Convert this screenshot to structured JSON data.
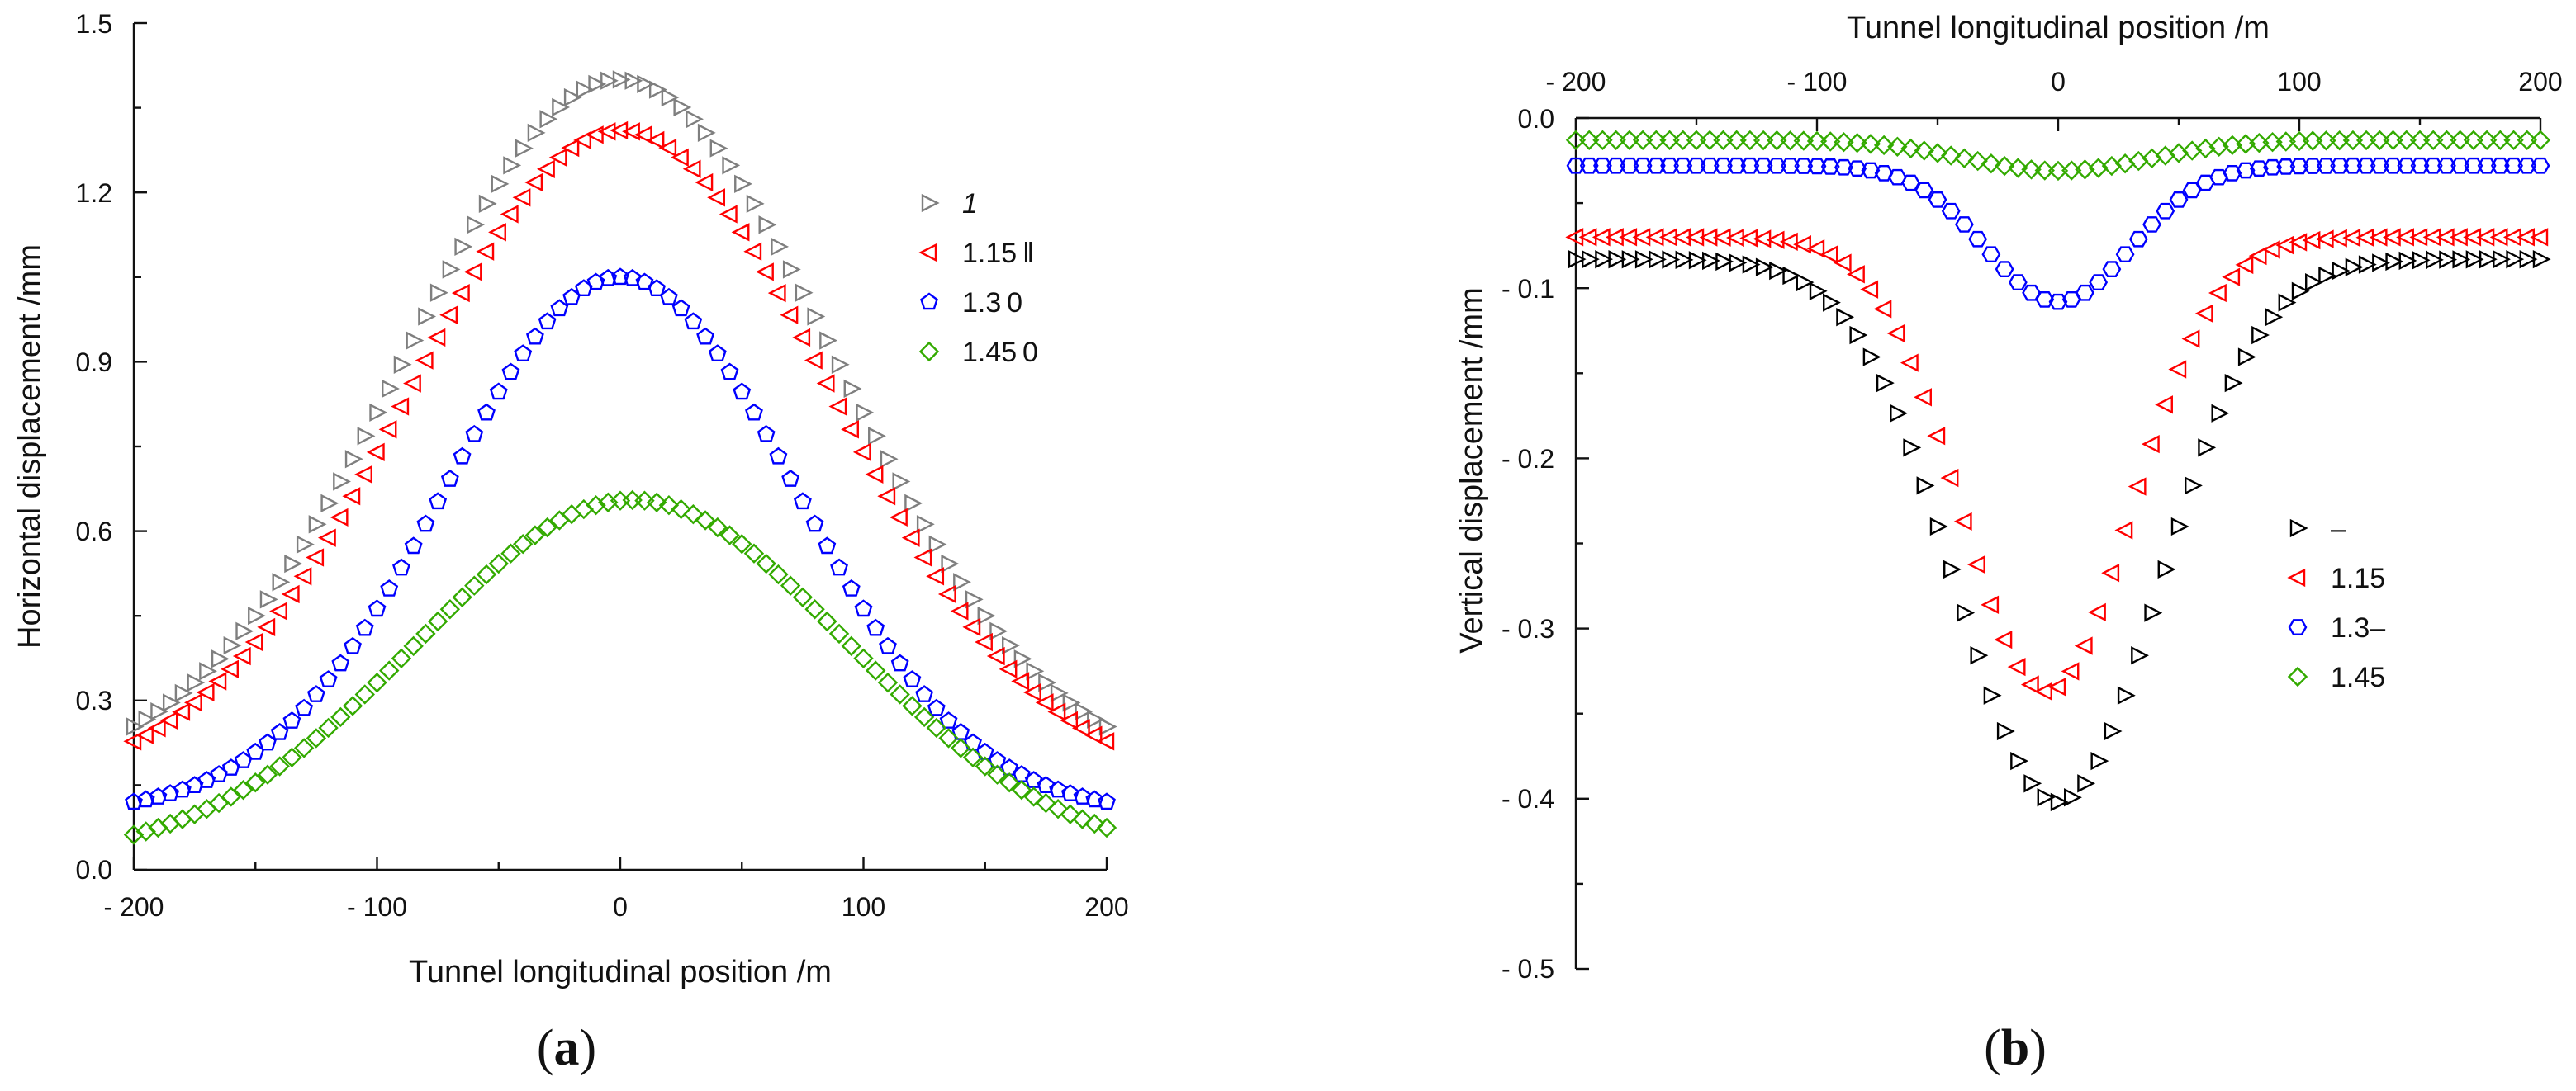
{
  "chart_data": [
    {
      "type": "scatter",
      "panel": "a",
      "panel_label_open": "(",
      "panel_label_letter": "a",
      "panel_label_close": ")",
      "xlabel": "Tunnel longitudinal position /m",
      "ylabel": "Horizontal  displacement /mm",
      "xlim": [
        -200,
        200
      ],
      "ylim": [
        0,
        1.5
      ],
      "x_major_ticks": [
        -200,
        -100,
        0,
        100,
        200
      ],
      "x_tick_labels": [
        "- 200",
        "- 100",
        "0",
        "100",
        "200"
      ],
      "x_minor_ticks": [
        -150,
        -50,
        50,
        150
      ],
      "y_ticks": [
        0,
        0.3,
        0.6,
        0.9,
        1.2,
        1.5
      ],
      "y_tick_labels": [
        "0.0",
        "0.3",
        "0.6",
        "0.9",
        "1.2",
        "1.5"
      ],
      "y_minor_ticks": [
        0.15,
        0.45,
        0.75,
        1.05,
        1.35
      ],
      "legend_position": "top-right",
      "series": [
        {
          "name": "1",
          "marker": "triangle-right",
          "color": "#7f7f7f",
          "peak": 1.4,
          "base": 0.16,
          "sigma": 88,
          "offset": 0
        },
        {
          "name": "1.15 ‖",
          "marker": "triangle-left",
          "color": "#ff0000",
          "peak": 1.31,
          "base": 0.15,
          "sigma": 86,
          "offset": 0
        },
        {
          "name": "1.3 0",
          "marker": "pentagon",
          "color": "#0000ff",
          "peak": 1.05,
          "base": 0.1,
          "sigma": 72,
          "offset": 0
        },
        {
          "name": "1.45 0",
          "marker": "diamond",
          "color": "#33aa00",
          "peak": 0.655,
          "base": 0.02,
          "sigma": 88,
          "offset": 5
        }
      ]
    },
    {
      "type": "scatter",
      "panel": "b",
      "panel_label_open": "(",
      "panel_label_letter": "b",
      "panel_label_close": ")",
      "xlabel": "Tunnel longitudinal position /m",
      "ylabel": "Vertical displacement /mm",
      "xlim": [
        -200,
        200
      ],
      "ylim": [
        -0.5,
        0
      ],
      "x_axis_position": "top",
      "x_major_ticks": [
        -200,
        -100,
        0,
        100,
        200
      ],
      "x_tick_labels": [
        "- 200",
        "- 100",
        "0",
        "100",
        "200"
      ],
      "x_minor_ticks": [
        -150,
        -50,
        50,
        150
      ],
      "y_ticks": [
        0,
        -0.1,
        -0.2,
        -0.3,
        -0.4,
        -0.5
      ],
      "y_tick_labels": [
        "0.0",
        "- 0.1",
        "- 0.2",
        "- 0.3",
        "- 0.4",
        "- 0.5"
      ],
      "y_minor_ticks": [
        -0.05,
        -0.15,
        -0.25,
        -0.35,
        -0.45
      ],
      "legend_position": "middle-right",
      "series": [
        {
          "name": "–",
          "marker": "triangle-right",
          "color": "#000000",
          "peak": -0.402,
          "base": -0.083,
          "sigma": 42,
          "offset": 0
        },
        {
          "name": "1.15",
          "marker": "triangle-left",
          "color": "#ff0000",
          "peak": -0.337,
          "base": -0.07,
          "sigma": 35,
          "offset": -5
        },
        {
          "name": "1.3–",
          "marker": "hexagon",
          "color": "#0000ff",
          "peak": -0.108,
          "base": -0.028,
          "sigma": 30,
          "offset": 0
        },
        {
          "name": "1.45",
          "marker": "diamond",
          "color": "#33aa00",
          "peak": -0.031,
          "base": -0.013,
          "sigma": 38,
          "offset": 0
        }
      ]
    }
  ]
}
